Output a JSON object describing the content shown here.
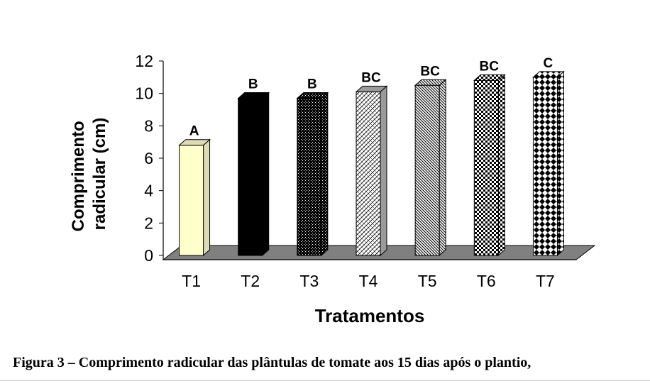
{
  "chart_data": {
    "type": "bar",
    "title": "",
    "xlabel": "Tratamentos",
    "ylabel": "Comprimento radicular (cm)",
    "ylim": [
      0,
      12
    ],
    "yticks": [
      "0",
      "2",
      "4",
      "6",
      "8",
      "10",
      "12"
    ],
    "categories": [
      "T1",
      "T2",
      "T3",
      "T4",
      "T5",
      "T6",
      "T7"
    ],
    "values": [
      6.8,
      9.7,
      9.7,
      10.1,
      10.5,
      10.8,
      11.0
    ],
    "letters": [
      "A",
      "B",
      "B",
      "BC",
      "BC",
      "BC",
      "C"
    ],
    "bar_styles": [
      "solid-cream",
      "solid-black",
      "dense-black-pattern",
      "light-hatch",
      "diagonal-stripes",
      "checker",
      "diamond-checker"
    ],
    "grid": false,
    "three_d": true
  },
  "caption": "Figura 3 – Comprimento radicular das plântulas de tomate aos 15 dias após o plantio,"
}
